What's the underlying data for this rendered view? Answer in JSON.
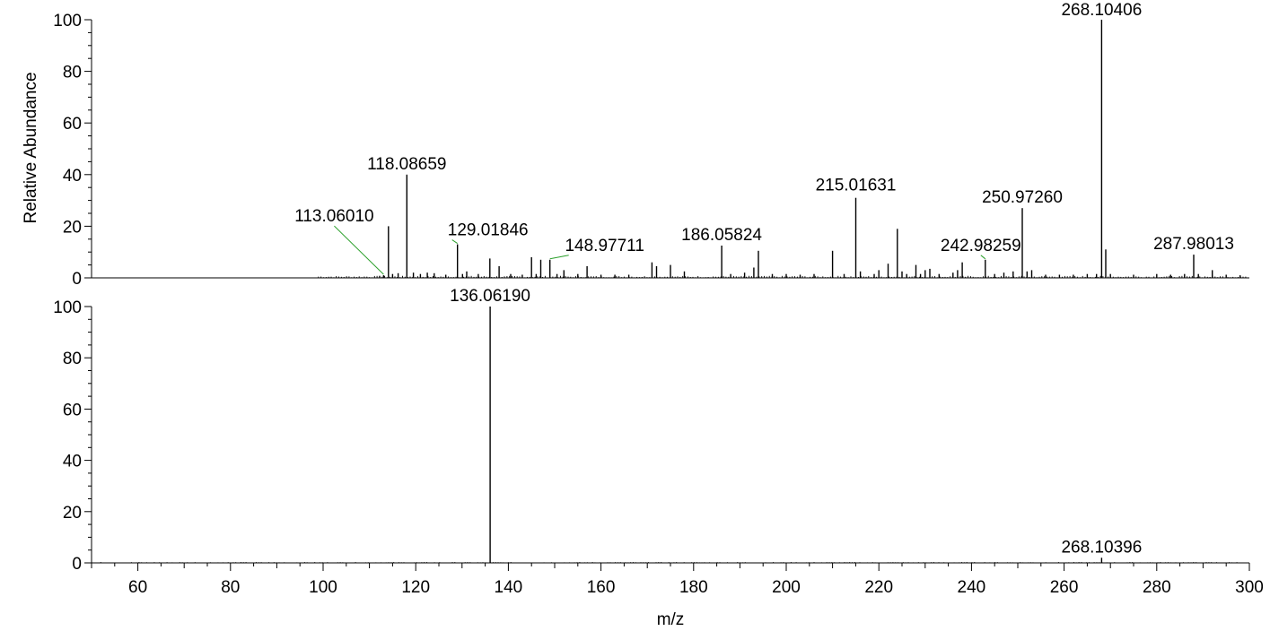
{
  "chart_data": {
    "type": "bar",
    "xlabel": "m/z",
    "ylabel": "Relative Abundance",
    "xlim": [
      50,
      300
    ],
    "x_ticks": [
      "60",
      "80",
      "100",
      "120",
      "140",
      "160",
      "180",
      "200",
      "220",
      "240",
      "260",
      "280",
      "300"
    ],
    "y_ticks": [
      "0",
      "20",
      "40",
      "60",
      "80",
      "100"
    ],
    "panels": [
      {
        "name": "top",
        "ylim": [
          0,
          100
        ],
        "peaks": [
          {
            "x": 112.2,
            "y": 0.8
          },
          {
            "x": 113.0601,
            "y": 1.0,
            "label": "113.06010",
            "leader": true
          },
          {
            "x": 114.1,
            "y": 20.0
          },
          {
            "x": 115.0,
            "y": 1.5
          },
          {
            "x": 116.2,
            "y": 1.8
          },
          {
            "x": 118.08659,
            "y": 40.0,
            "label": "118.08659"
          },
          {
            "x": 119.5,
            "y": 2.0
          },
          {
            "x": 121.0,
            "y": 1.5
          },
          {
            "x": 122.5,
            "y": 2.0
          },
          {
            "x": 124.0,
            "y": 1.8
          },
          {
            "x": 126.5,
            "y": 1.2
          },
          {
            "x": 129.01846,
            "y": 13.0,
            "label": "129.01846",
            "leader": true
          },
          {
            "x": 130.1,
            "y": 1.5
          },
          {
            "x": 131.0,
            "y": 2.5
          },
          {
            "x": 133.5,
            "y": 1.5
          },
          {
            "x": 136.0,
            "y": 7.5
          },
          {
            "x": 138.0,
            "y": 4.5
          },
          {
            "x": 140.5,
            "y": 1.5
          },
          {
            "x": 143.0,
            "y": 1.2
          },
          {
            "x": 145.0,
            "y": 8.0
          },
          {
            "x": 146.0,
            "y": 1.5
          },
          {
            "x": 147.0,
            "y": 7.0
          },
          {
            "x": 148.97711,
            "y": 7.0,
            "label": "148.97711",
            "leader": true
          },
          {
            "x": 150.5,
            "y": 1.5
          },
          {
            "x": 152.0,
            "y": 3.0
          },
          {
            "x": 155.0,
            "y": 1.5
          },
          {
            "x": 157.0,
            "y": 4.5
          },
          {
            "x": 160.0,
            "y": 1.2
          },
          {
            "x": 163.0,
            "y": 1.2
          },
          {
            "x": 166.0,
            "y": 1.2
          },
          {
            "x": 171.0,
            "y": 6.0
          },
          {
            "x": 172.0,
            "y": 4.5
          },
          {
            "x": 175.0,
            "y": 5.0
          },
          {
            "x": 178.0,
            "y": 2.5
          },
          {
            "x": 186.05824,
            "y": 12.5,
            "label": "186.05824"
          },
          {
            "x": 188.0,
            "y": 1.5
          },
          {
            "x": 191.0,
            "y": 2.0
          },
          {
            "x": 193.0,
            "y": 4.0
          },
          {
            "x": 194.0,
            "y": 10.5
          },
          {
            "x": 197.0,
            "y": 1.5
          },
          {
            "x": 200.0,
            "y": 1.5
          },
          {
            "x": 203.0,
            "y": 1.2
          },
          {
            "x": 206.0,
            "y": 1.5
          },
          {
            "x": 210.0,
            "y": 10.5
          },
          {
            "x": 212.5,
            "y": 1.5
          },
          {
            "x": 215.01631,
            "y": 31.0,
            "label": "215.01631"
          },
          {
            "x": 216.0,
            "y": 2.5
          },
          {
            "x": 219.0,
            "y": 1.5
          },
          {
            "x": 220.0,
            "y": 3.0
          },
          {
            "x": 222.0,
            "y": 5.5
          },
          {
            "x": 224.0,
            "y": 19.0
          },
          {
            "x": 225.0,
            "y": 2.5
          },
          {
            "x": 226.0,
            "y": 1.5
          },
          {
            "x": 228.0,
            "y": 5.0
          },
          {
            "x": 229.0,
            "y": 1.5
          },
          {
            "x": 230.0,
            "y": 3.0
          },
          {
            "x": 231.0,
            "y": 3.5
          },
          {
            "x": 233.0,
            "y": 1.5
          },
          {
            "x": 236.0,
            "y": 2.0
          },
          {
            "x": 237.0,
            "y": 3.0
          },
          {
            "x": 238.0,
            "y": 6.0
          },
          {
            "x": 242.98259,
            "y": 7.0,
            "label": "242.98259",
            "leader": true
          },
          {
            "x": 245.0,
            "y": 1.5
          },
          {
            "x": 247.0,
            "y": 2.0
          },
          {
            "x": 249.0,
            "y": 2.5
          },
          {
            "x": 250.9726,
            "y": 27.0,
            "label": "250.97260"
          },
          {
            "x": 252.0,
            "y": 2.5
          },
          {
            "x": 253.0,
            "y": 3.0
          },
          {
            "x": 256.0,
            "y": 1.2
          },
          {
            "x": 259.0,
            "y": 1.2
          },
          {
            "x": 262.0,
            "y": 1.2
          },
          {
            "x": 265.0,
            "y": 1.5
          },
          {
            "x": 267.0,
            "y": 1.5
          },
          {
            "x": 268.10406,
            "y": 100.0,
            "label": "268.10406"
          },
          {
            "x": 269.0,
            "y": 11.0
          },
          {
            "x": 270.0,
            "y": 1.5
          },
          {
            "x": 275.0,
            "y": 1.2
          },
          {
            "x": 280.0,
            "y": 1.5
          },
          {
            "x": 283.0,
            "y": 1.2
          },
          {
            "x": 286.0,
            "y": 1.5
          },
          {
            "x": 287.98013,
            "y": 9.0,
            "label": "287.98013"
          },
          {
            "x": 289.0,
            "y": 1.5
          },
          {
            "x": 292.0,
            "y": 3.0
          },
          {
            "x": 295.0,
            "y": 1.2
          },
          {
            "x": 298.0,
            "y": 1.0
          }
        ]
      },
      {
        "name": "bottom",
        "ylim": [
          0,
          100
        ],
        "peaks": [
          {
            "x": 136.0619,
            "y": 100.0,
            "label": "136.06190"
          },
          {
            "x": 268.10396,
            "y": 2.0,
            "label": "268.10396"
          }
        ]
      }
    ]
  }
}
